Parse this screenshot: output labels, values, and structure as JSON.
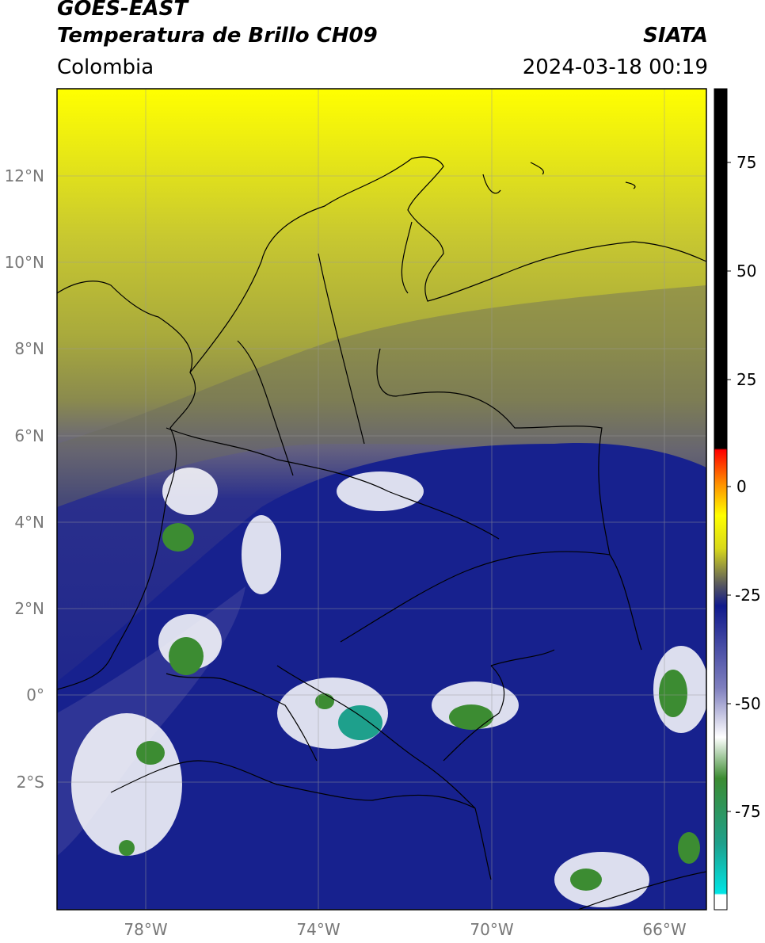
{
  "header": {
    "satellite": "GOES-EAST",
    "product": "Temperatura de Brillo CH09",
    "agency": "SIATA",
    "region": "Colombia",
    "datetime": "2024-03-18 00:19"
  },
  "map": {
    "lat_labels": [
      "12°N",
      "10°N",
      "8°N",
      "6°N",
      "4°N",
      "2°N",
      "0°",
      "2°S"
    ],
    "lon_labels": [
      "78°W",
      "74°W",
      "70°W",
      "66°W"
    ]
  },
  "colorbar": {
    "ticks": [
      "75",
      "50",
      "25",
      "0",
      "-25",
      "-50",
      "-75"
    ],
    "colors": [
      "#ffffff",
      "#00e5e5",
      "#1ea08c",
      "#3c8c32",
      "#ffffff",
      "#7f7fbe",
      "#101a8c",
      "#555560",
      "#d8d81a",
      "#ffff00",
      "#ff8c00",
      "#ff0000",
      "#000000"
    ]
  }
}
